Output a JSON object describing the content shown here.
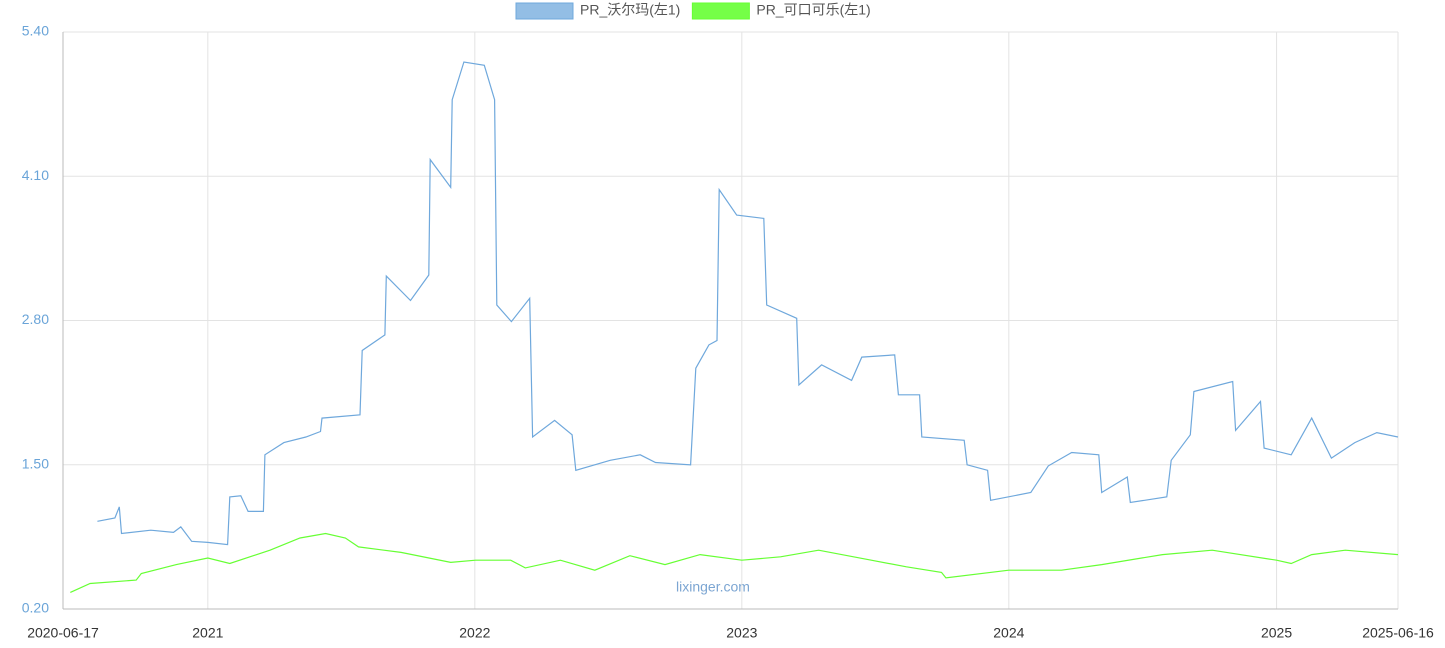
{
  "chart_data": {
    "type": "line",
    "xlim": [
      "2020-06-17",
      "2025-06-16"
    ],
    "xticks": [
      "2020-06-17",
      {
        "value": "2021-01-01",
        "label": "2021"
      },
      {
        "value": "2022-01-01",
        "label": "2022"
      },
      {
        "value": "2023-01-01",
        "label": "2023"
      },
      {
        "value": "2024-01-01",
        "label": "2024"
      },
      {
        "value": "2025-01-01",
        "label": "2025"
      },
      "2025-06-16"
    ],
    "ylim": [
      0.2,
      5.4
    ],
    "yticks": [
      {
        "value": 0.2,
        "label": "0.20"
      },
      {
        "value": 1.5,
        "label": "1.50"
      },
      {
        "value": 2.8,
        "label": "2.80"
      },
      {
        "value": 4.1,
        "label": "4.10"
      },
      {
        "value": 5.4,
        "label": "5.40"
      }
    ],
    "grid": true,
    "legend": "top",
    "watermark": "lixinger.com",
    "series": [
      {
        "name": "PR_沃尔玛(左1)",
        "color": "#6fa8dc",
        "x": [
          "2020-08-03",
          "2020-08-27",
          "2020-09-02",
          "2020-09-05",
          "2020-10-15",
          "2020-11-15",
          "2020-11-25",
          "2020-12-10",
          "2021-01-01",
          "2021-01-28",
          "2021-01-31",
          "2021-02-15",
          "2021-02-25",
          "2021-03-18",
          "2021-03-20",
          "2021-04-15",
          "2021-05-15",
          "2021-06-04",
          "2021-06-06",
          "2021-07-28",
          "2021-07-31",
          "2021-08-31",
          "2021-09-02",
          "2021-10-05",
          "2021-10-30",
          "2021-11-01",
          "2021-11-29",
          "2021-12-01",
          "2021-12-17",
          "2022-01-14",
          "2022-01-28",
          "2022-01-31",
          "2022-02-20",
          "2022-03-17",
          "2022-03-21",
          "2022-04-20",
          "2022-05-14",
          "2022-05-19",
          "2022-07-05",
          "2022-08-15",
          "2022-09-05",
          "2022-10-23",
          "2022-10-30",
          "2022-11-17",
          "2022-11-28",
          "2022-12-01",
          "2022-12-25",
          "2023-01-31",
          "2023-02-04",
          "2023-03-17",
          "2023-03-20",
          "2023-04-20",
          "2023-05-31",
          "2023-06-14",
          "2023-07-29",
          "2023-08-03",
          "2023-09-01",
          "2023-09-04",
          "2023-11-01",
          "2023-11-05",
          "2023-12-03",
          "2023-12-07",
          "2024-01-31",
          "2024-02-24",
          "2024-03-27",
          "2024-05-03",
          "2024-05-07",
          "2024-06-11",
          "2024-06-15",
          "2024-08-04",
          "2024-08-10",
          "2024-09-05",
          "2024-09-10",
          "2024-11-02",
          "2024-11-06",
          "2024-12-10",
          "2024-12-15",
          "2025-01-21",
          "2025-02-18",
          "2025-03-17",
          "2025-04-18",
          "2025-05-18",
          "2025-06-16"
        ],
        "values": [
          0.99,
          1.02,
          1.12,
          0.88,
          0.91,
          0.89,
          0.94,
          0.81,
          0.8,
          0.78,
          1.21,
          1.22,
          1.08,
          1.08,
          1.59,
          1.7,
          1.75,
          1.8,
          1.92,
          1.95,
          2.53,
          2.67,
          3.2,
          2.98,
          3.21,
          4.25,
          4.0,
          4.79,
          5.13,
          5.1,
          4.79,
          2.94,
          2.79,
          3.0,
          1.75,
          1.9,
          1.77,
          1.45,
          1.54,
          1.59,
          1.52,
          1.5,
          2.37,
          2.58,
          2.62,
          3.98,
          3.75,
          3.72,
          2.94,
          2.82,
          2.22,
          2.4,
          2.26,
          2.47,
          2.49,
          2.13,
          2.13,
          1.75,
          1.72,
          1.5,
          1.45,
          1.18,
          1.25,
          1.49,
          1.61,
          1.59,
          1.25,
          1.39,
          1.16,
          1.21,
          1.54,
          1.77,
          2.16,
          2.25,
          1.81,
          2.07,
          1.65,
          1.59,
          1.92,
          1.56,
          1.7,
          1.79,
          1.75
        ]
      },
      {
        "name": "PR_可口可乐(左1)",
        "color": "#66ff33",
        "x": [
          "2020-06-27",
          "2020-07-24",
          "2020-09-25",
          "2020-10-02",
          "2020-11-19",
          "2021-01-01",
          "2021-01-31",
          "2021-03-27",
          "2021-05-07",
          "2021-06-11",
          "2021-07-08",
          "2021-07-26",
          "2021-09-22",
          "2021-11-29",
          "2022-01-02",
          "2022-02-19",
          "2022-03-11",
          "2022-04-28",
          "2022-06-14",
          "2022-08-01",
          "2022-09-18",
          "2022-11-05",
          "2023-01-01",
          "2023-02-23",
          "2023-04-16",
          "2023-06-27",
          "2023-08-14",
          "2023-10-01",
          "2023-10-07",
          "2024-01-01",
          "2024-03-13",
          "2024-05-07",
          "2024-07-29",
          "2024-10-05",
          "2025-01-01",
          "2025-01-21",
          "2025-02-18",
          "2025-04-05",
          "2025-06-16"
        ],
        "values": [
          0.35,
          0.43,
          0.46,
          0.52,
          0.6,
          0.66,
          0.61,
          0.73,
          0.84,
          0.88,
          0.84,
          0.76,
          0.71,
          0.62,
          0.64,
          0.64,
          0.57,
          0.64,
          0.55,
          0.68,
          0.6,
          0.69,
          0.64,
          0.67,
          0.73,
          0.64,
          0.58,
          0.53,
          0.48,
          0.55,
          0.55,
          0.6,
          0.69,
          0.73,
          0.64,
          0.61,
          0.69,
          0.73,
          0.69
        ]
      }
    ]
  }
}
